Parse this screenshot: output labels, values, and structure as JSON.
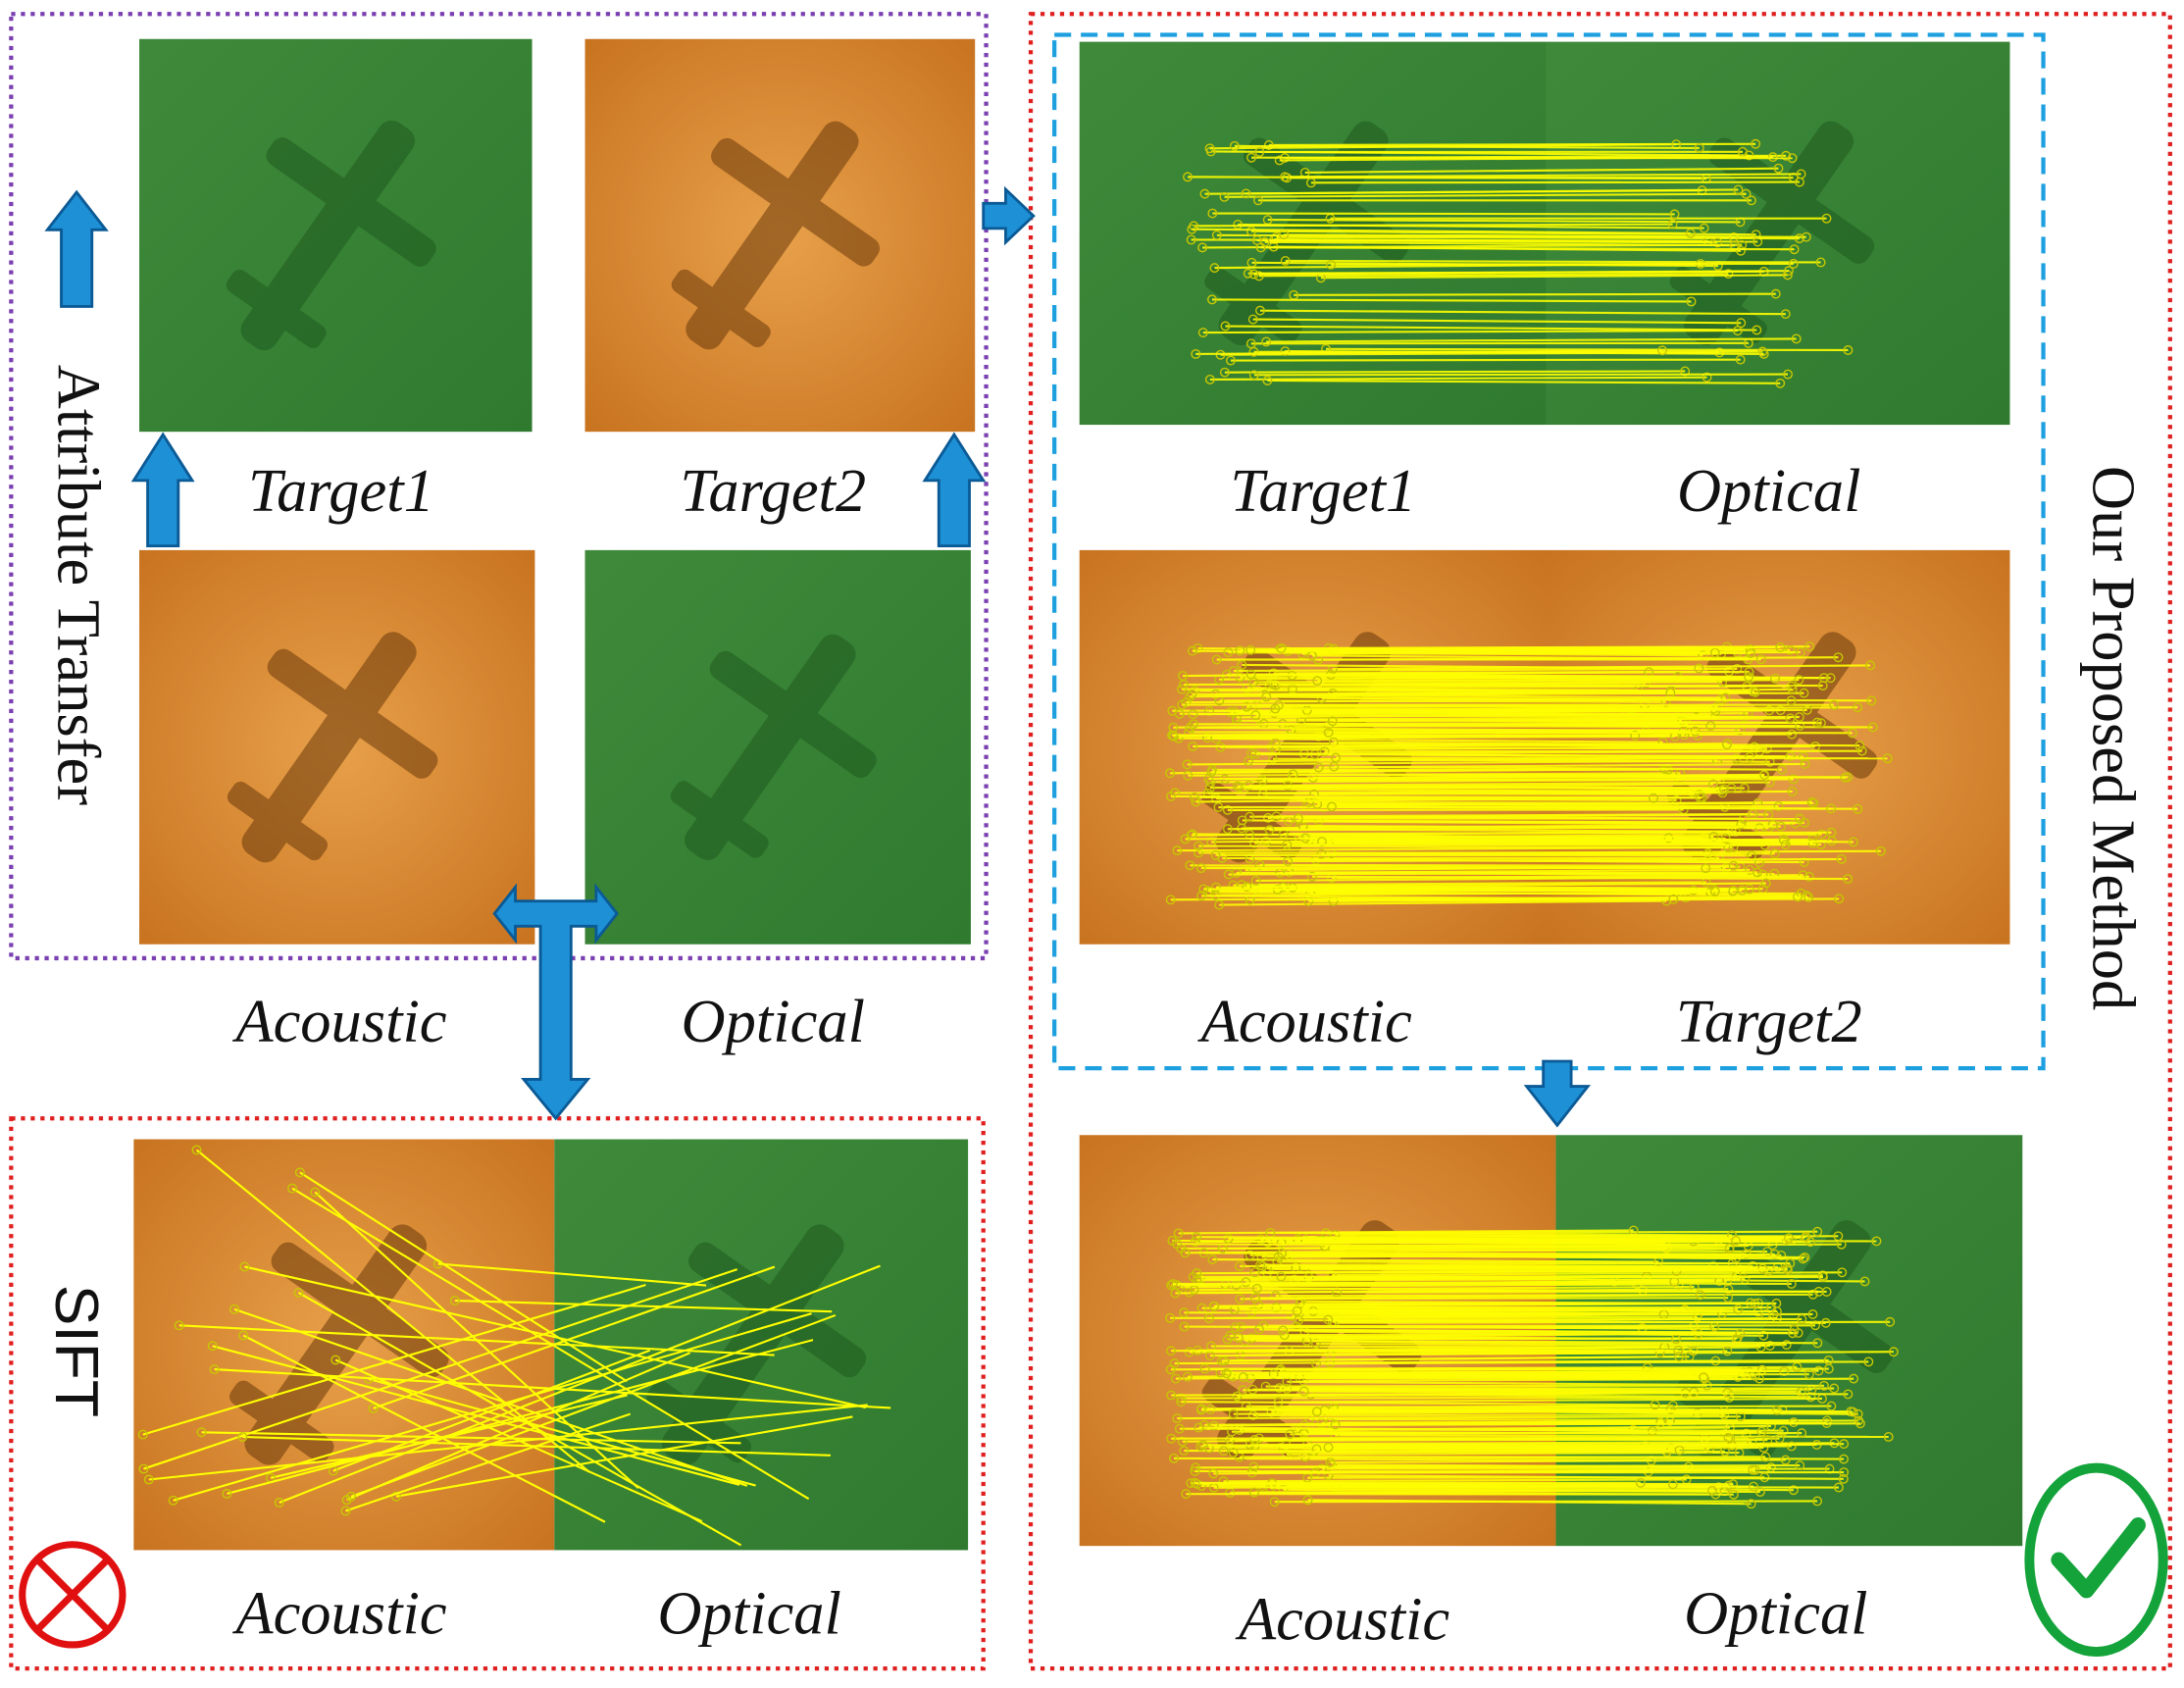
{
  "attribute_transfer": {
    "title": "Attribute Transfer",
    "panels": [
      {
        "label": "Target1"
      },
      {
        "label": "Target2"
      },
      {
        "label": "Acoustic"
      },
      {
        "label": "Optical"
      }
    ]
  },
  "sift": {
    "title": "SIFT",
    "labels": [
      "Acoustic",
      "Optical"
    ]
  },
  "proposed": {
    "title": "Our Proposed Method",
    "pairs": [
      {
        "left": "Target1",
        "right": "Optical"
      },
      {
        "left": "Acoustic",
        "right": "Target2"
      },
      {
        "left": "Acoustic",
        "right": "Optical"
      }
    ]
  }
}
